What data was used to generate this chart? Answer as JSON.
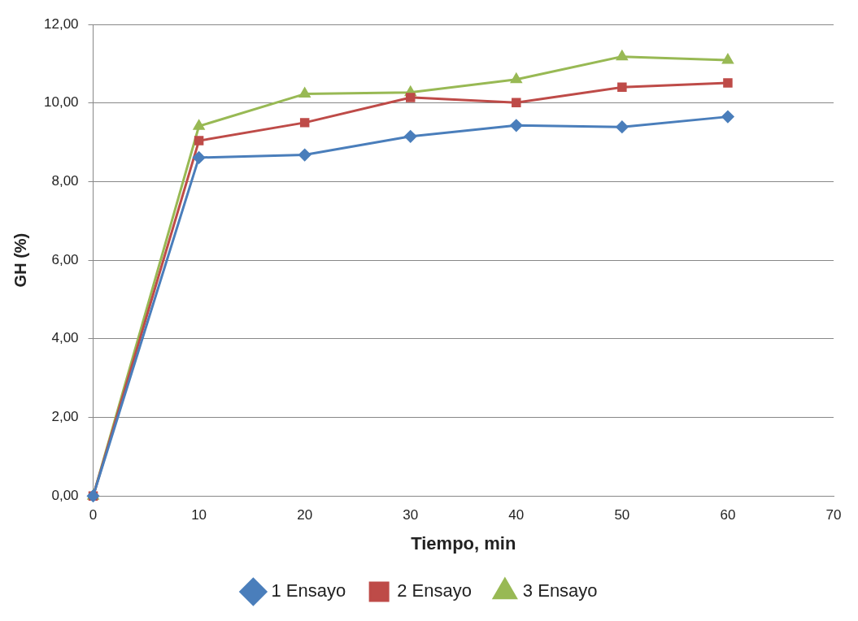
{
  "chart_data": {
    "type": "line",
    "xlabel": "Tiempo, min",
    "ylabel": "GH (%)",
    "x": [
      0,
      10,
      20,
      30,
      40,
      50,
      60
    ],
    "series": [
      {
        "name": "1 Ensayo",
        "color": "#4a7ebb",
        "marker": "diamond",
        "values": [
          0,
          8.61,
          8.68,
          9.15,
          9.43,
          9.39,
          9.65
        ]
      },
      {
        "name": "2 Ensayo",
        "color": "#be4b48",
        "marker": "square",
        "values": [
          0,
          9.04,
          9.5,
          10.14,
          10.01,
          10.4,
          10.51
        ]
      },
      {
        "name": "3 Ensayo",
        "color": "#98b954",
        "marker": "triangle",
        "values": [
          0,
          9.41,
          10.23,
          10.27,
          10.6,
          11.18,
          11.09
        ]
      }
    ],
    "xlim": [
      0,
      70
    ],
    "xticks": [
      0,
      10,
      20,
      30,
      40,
      50,
      60,
      70
    ],
    "ylim": [
      0,
      12
    ],
    "yticks": [
      {
        "value": 0,
        "label": "0,00"
      },
      {
        "value": 2,
        "label": "2,00"
      },
      {
        "value": 4,
        "label": "4,00"
      },
      {
        "value": 6,
        "label": "6,00"
      },
      {
        "value": 8,
        "label": "8,00"
      },
      {
        "value": 10,
        "label": "10,00"
      },
      {
        "value": 12,
        "label": "12,00"
      }
    ],
    "grid": "y",
    "legend": "bottom"
  }
}
